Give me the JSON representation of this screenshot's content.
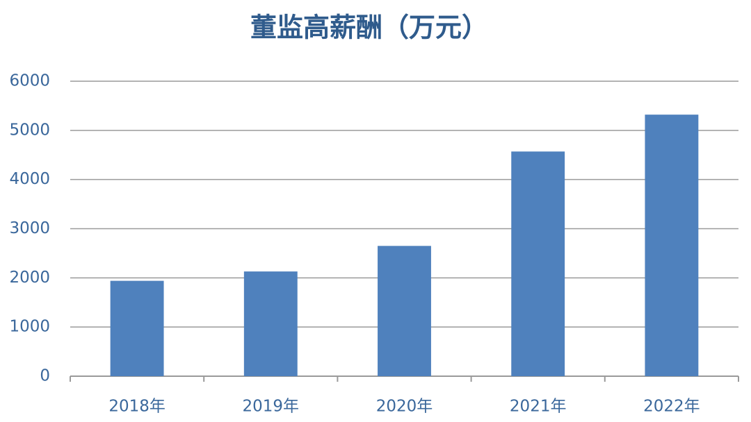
{
  "chart_data": {
    "type": "bar",
    "title": "董监高薪酬（万元）",
    "categories": [
      "2018年",
      "2019年",
      "2020年",
      "2021年",
      "2022年"
    ],
    "values": [
      1940,
      2130,
      2650,
      4570,
      5320
    ],
    "color": "#4f81bd",
    "ylim": [
      0,
      6000
    ],
    "yticks": [
      0,
      1000,
      2000,
      3000,
      4000,
      5000,
      6000
    ],
    "grid": true
  }
}
